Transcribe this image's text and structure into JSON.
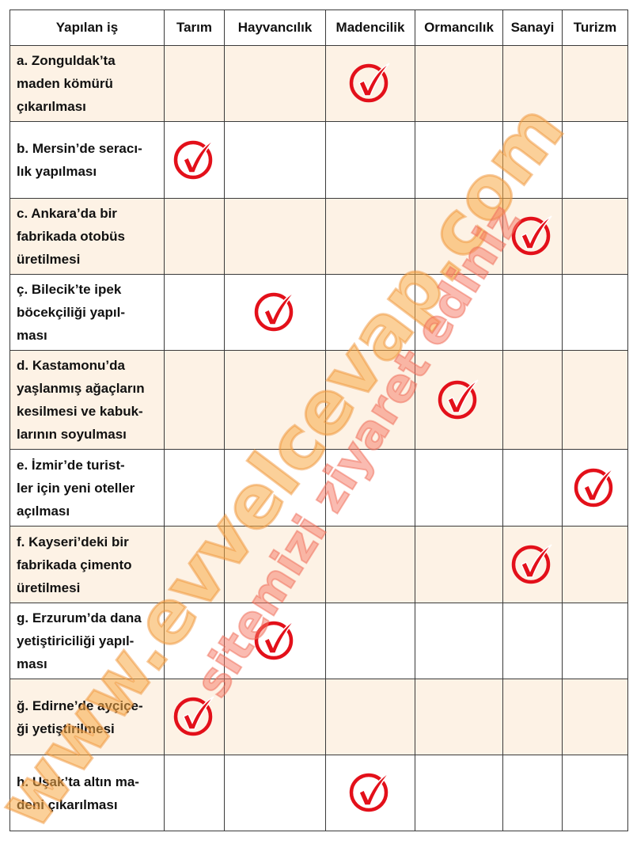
{
  "table": {
    "headers": [
      "Yapılan iş",
      "Tarım",
      "Hayvancılık",
      "Madencilik",
      "Ormancılık",
      "Sanayi",
      "Turizm"
    ],
    "rows": [
      {
        "lines": [
          "a. Zonguldak’ta",
          "maden kömürü",
          "çıkarılması"
        ],
        "checked": "Madencilik"
      },
      {
        "lines": [
          "b. Mersin’de seracı-",
          "lık yapılması"
        ],
        "checked": "Tarım"
      },
      {
        "lines": [
          "c. Ankara’da bir",
          "fabrikada otobüs",
          "üretilmesi"
        ],
        "checked": "Sanayi"
      },
      {
        "lines": [
          "ç. Bilecik’te ipek",
          "böcekçiliği yapıl-",
          "ması"
        ],
        "checked": "Hayvancılık"
      },
      {
        "lines": [
          "d. Kastamonu’da",
          "yaşlanmış ağaçların",
          "kesilmesi ve kabuk-",
          "larının soyulması"
        ],
        "checked": "Ormancılık"
      },
      {
        "lines": [
          "e. İzmir’de turist-",
          "ler için yeni oteller",
          "açılması"
        ],
        "checked": "Turizm"
      },
      {
        "lines": [
          "f. Kayseri’deki bir",
          "fabrikada çimento",
          "üretilmesi"
        ],
        "checked": "Sanayi"
      },
      {
        "lines": [
          "g. Erzurum’da dana",
          "yetiştiriciliği yapıl-",
          "ması"
        ],
        "checked": "Hayvancılık"
      },
      {
        "lines": [
          "ğ. Edirne’de ayçiçe-",
          "ği yetiştirilmesi"
        ],
        "checked": "Tarım"
      },
      {
        "lines": [
          "h. Uşak’ta altın ma-",
          "deni çıkarılması"
        ],
        "checked": "Madencilik"
      }
    ]
  },
  "watermark": {
    "main": "www.evvelcevap.com",
    "secondary": "sitemizi ziyaret ediniz"
  },
  "colors": {
    "check": "#e3101a",
    "shade": "#fdf2e5",
    "border": "#3a3a3a"
  },
  "icons": {
    "check": "check-circle-icon"
  }
}
